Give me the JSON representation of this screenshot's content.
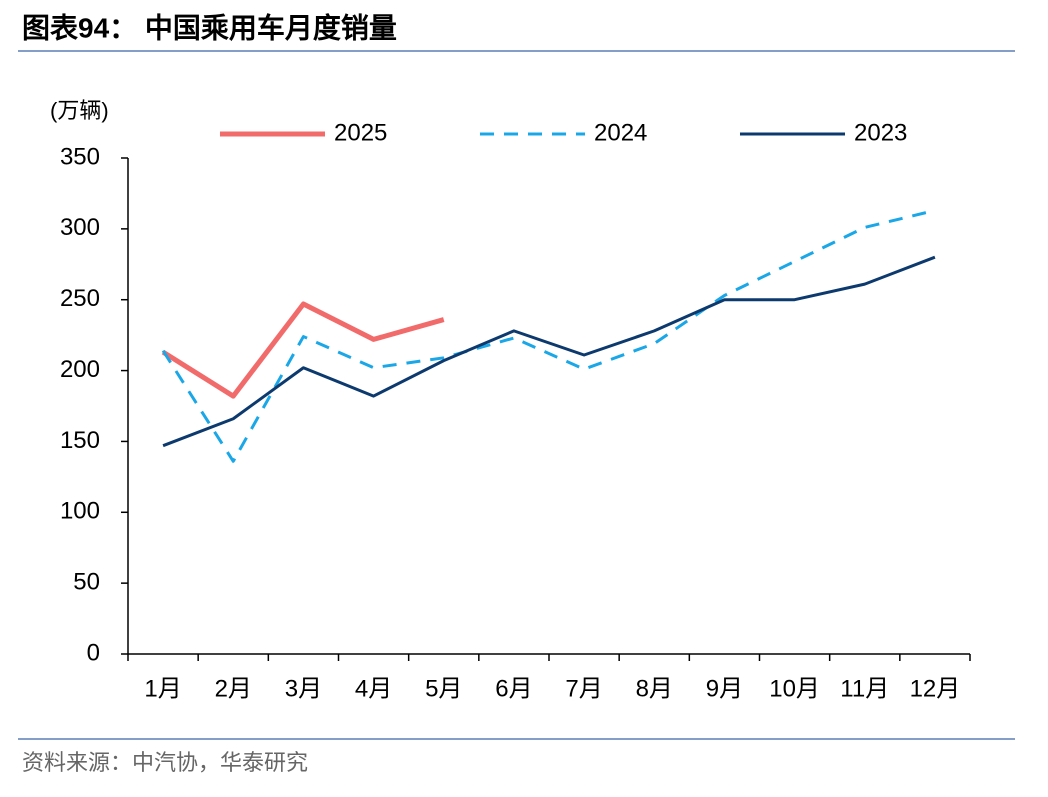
{
  "header": {
    "title": "图表94：  中国乘用车月度销量"
  },
  "chart_data": {
    "type": "line",
    "y_label": "(万辆)",
    "categories": [
      "1月",
      "2月",
      "3月",
      "4月",
      "5月",
      "6月",
      "7月",
      "8月",
      "9月",
      "10月",
      "11月",
      "12月"
    ],
    "series": [
      {
        "name": "2025",
        "color": "#f26b6b",
        "style": "solid",
        "width": 5,
        "values": [
          213,
          182,
          247,
          222,
          236,
          null,
          null,
          null,
          null,
          null,
          null,
          null
        ]
      },
      {
        "name": "2024",
        "color": "#1aa7e8",
        "style": "dashed",
        "width": 3,
        "values": [
          214,
          136,
          224,
          202,
          209,
          223,
          201,
          219,
          253,
          277,
          301,
          313
        ]
      },
      {
        "name": "2023",
        "color": "#0d3a6e",
        "style": "solid",
        "width": 3,
        "values": [
          147,
          166,
          202,
          182,
          207,
          228,
          211,
          228,
          250,
          250,
          261,
          280
        ]
      }
    ],
    "ylim": [
      0,
      350
    ],
    "yticks": [
      0,
      50,
      100,
      150,
      200,
      250,
      300,
      350
    ]
  },
  "footer": {
    "source": "资料来源：中汽协，华泰研究"
  }
}
